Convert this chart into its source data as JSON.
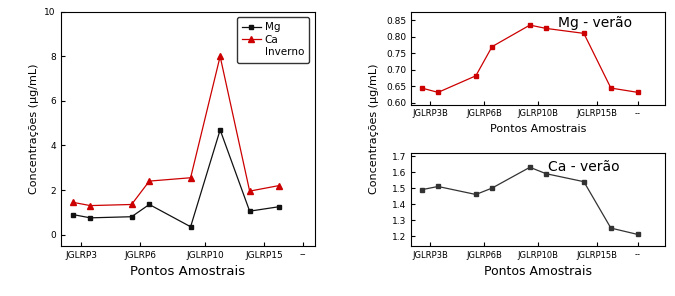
{
  "inverno": {
    "x_labels": [
      "JGLRP3",
      "JGLRP6",
      "JGLRP10",
      "JGLRP15",
      "--"
    ],
    "mg_values": [
      0.9,
      0.75,
      0.8,
      1.35,
      0.35,
      4.7,
      1.05,
      1.25
    ],
    "ca_values": [
      1.45,
      1.3,
      1.35,
      2.4,
      2.55,
      8.0,
      1.95,
      2.2
    ],
    "mg_x": [
      0,
      0.3,
      1.0,
      1.3,
      2.0,
      2.5,
      3.0,
      3.5
    ],
    "ca_x": [
      0,
      0.3,
      1.0,
      1.3,
      2.0,
      2.5,
      3.0,
      3.5
    ],
    "xtick_pos": [
      0.15,
      1.15,
      2.25,
      3.25,
      3.9
    ],
    "ylabel": "Concentrações (μg/mL)",
    "xlabel": "Pontos Amostrais",
    "ylim": [
      -0.5,
      10
    ],
    "yticks": [
      0,
      2,
      4,
      6,
      8,
      10
    ],
    "xlim": [
      -0.2,
      4.1
    ],
    "legend_mg": "Mg",
    "legend_ca": "Ca",
    "legend_inverno": "Inverno",
    "mg_color": "#111111",
    "ca_color": "#cc0000",
    "marker_mg": "s",
    "marker_ca": "^"
  },
  "verao_mg": {
    "x_labels": [
      "JGLRP3B",
      "JGLRP6B",
      "JGLRP10B",
      "JGLRP15B",
      "--"
    ],
    "values": [
      0.645,
      0.632,
      0.682,
      0.77,
      0.835,
      0.825,
      0.81,
      0.645,
      0.632
    ],
    "x": [
      0,
      0.3,
      1.0,
      1.3,
      2.0,
      2.3,
      3.0,
      3.5,
      4.0
    ],
    "xtick_pos": [
      0.15,
      1.15,
      2.15,
      3.25,
      4.0
    ],
    "xlim": [
      -0.2,
      4.5
    ],
    "xlabel": "Pontos Amostrais",
    "ylim": [
      0.595,
      0.875
    ],
    "yticks": [
      0.6,
      0.65,
      0.7,
      0.75,
      0.8,
      0.85
    ],
    "label": "Mg - verão",
    "color": "#cc0000",
    "marker": "s"
  },
  "verao_ca": {
    "x_labels": [
      "JGLRP3B",
      "JGLRP6B",
      "JGLRP10B",
      "JGLRP15B",
      "--"
    ],
    "values": [
      1.49,
      1.51,
      1.46,
      1.5,
      1.63,
      1.59,
      1.54,
      1.25,
      1.21
    ],
    "x": [
      0,
      0.3,
      1.0,
      1.3,
      2.0,
      2.3,
      3.0,
      3.5,
      4.0
    ],
    "xtick_pos": [
      0.15,
      1.15,
      2.15,
      3.25,
      4.0
    ],
    "xlim": [
      -0.2,
      4.5
    ],
    "xlabel": "Pontos Amostrais",
    "ylim": [
      1.14,
      1.72
    ],
    "yticks": [
      1.2,
      1.3,
      1.4,
      1.5,
      1.6,
      1.7
    ],
    "label": "Ca - verão",
    "color": "#333333",
    "marker": "s"
  },
  "right_ylabel": "Concentrações (μg/mL)",
  "tick_label_fontsize": 6.5,
  "axis_label_fontsize": 8,
  "legend_fontsize": 7.5,
  "annotation_fontsize": 10
}
